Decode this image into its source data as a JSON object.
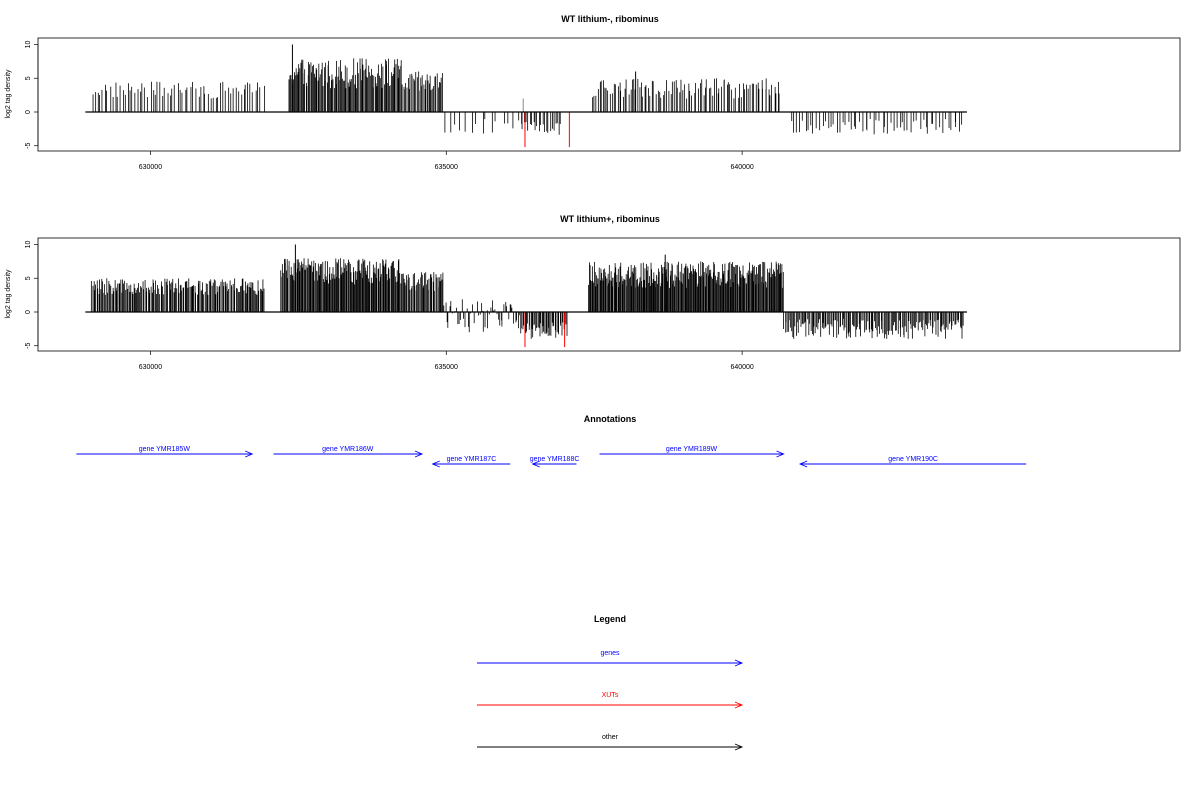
{
  "chart_data": [
    {
      "type": "bar",
      "title": "WT lithium-, ribominus",
      "ylabel": "log2 tag density",
      "xlim": [
        628100,
        647400
      ],
      "ylim": [
        -5.5,
        10.5
      ],
      "x_ticks": [
        630000,
        635000,
        640000
      ],
      "x_tick_labels": [
        "630000",
        "635000",
        "640000"
      ],
      "y_ticks": [
        -5,
        0,
        5,
        10
      ],
      "y_tick_labels": [
        "-5",
        "0",
        "5",
        "10"
      ],
      "baseline": {
        "from": 628900,
        "to": 643800
      },
      "segments": [
        {
          "from": 629000,
          "to": 631930,
          "min": 2,
          "max": 4.5,
          "density": 0.4
        },
        {
          "from": 632330,
          "to": 634250,
          "min": 3.5,
          "max": 8,
          "density": 1.1
        },
        {
          "from": 634250,
          "to": 634950,
          "min": 2.5,
          "max": 6,
          "density": 0.9
        },
        {
          "from": 634950,
          "to": 636250,
          "min": -3.5,
          "max": -1,
          "density": 0.2
        },
        {
          "from": 636250,
          "to": 636950,
          "min": -3.5,
          "max": -1.5,
          "density": 0.55
        },
        {
          "from": 637450,
          "to": 640650,
          "min": 2,
          "max": 5,
          "density": 0.55
        },
        {
          "from": 640800,
          "to": 643750,
          "min": -3.5,
          "max": -1,
          "density": 0.35
        }
      ],
      "peaks": [
        {
          "x": 632400,
          "y": 10,
          "color": "#000000"
        },
        {
          "x": 638200,
          "y": 6,
          "color": "#000000"
        },
        {
          "x": 636300,
          "y": 2,
          "color": "#888888"
        }
      ],
      "highlights": [
        {
          "x": 636330,
          "y": -5.2,
          "color": "#ff0000"
        },
        {
          "x": 637080,
          "y": -5.2,
          "color": "#ff0000"
        }
      ]
    },
    {
      "type": "bar",
      "title": "WT lithium+, ribominus",
      "ylabel": "log2 tag density",
      "xlim": [
        628100,
        647400
      ],
      "ylim": [
        -5.5,
        10.5
      ],
      "x_ticks": [
        630000,
        635000,
        640000
      ],
      "x_tick_labels": [
        "630000",
        "635000",
        "640000"
      ],
      "y_ticks": [
        -5,
        0,
        5,
        10
      ],
      "y_tick_labels": [
        "-5",
        "0",
        "5",
        "10"
      ],
      "baseline": {
        "from": 628900,
        "to": 643800
      },
      "segments": [
        {
          "from": 629000,
          "to": 631930,
          "min": 2.5,
          "max": 5,
          "density": 1.0
        },
        {
          "from": 632200,
          "to": 634250,
          "min": 4,
          "max": 8,
          "density": 1.3
        },
        {
          "from": 634250,
          "to": 634950,
          "min": 3,
          "max": 6,
          "density": 1.1
        },
        {
          "from": 634950,
          "to": 636250,
          "min": -3.5,
          "max": 2,
          "density": 0.7
        },
        {
          "from": 636250,
          "to": 637050,
          "min": -4,
          "max": -1.5,
          "density": 1.0
        },
        {
          "from": 637400,
          "to": 640700,
          "min": 3.5,
          "max": 7.5,
          "density": 1.4
        },
        {
          "from": 640700,
          "to": 643750,
          "min": -4,
          "max": -1,
          "density": 0.9
        }
      ],
      "peaks": [
        {
          "x": 632450,
          "y": 10,
          "color": "#000000"
        },
        {
          "x": 638700,
          "y": 8.5,
          "color": "#000000"
        }
      ],
      "highlights": [
        {
          "x": 636330,
          "y": -5.2,
          "color": "#ff0000"
        },
        {
          "x": 637000,
          "y": -5.2,
          "color": "#ff0000"
        }
      ]
    }
  ],
  "annotations": {
    "title": "Annotations",
    "genes": [
      {
        "label": "gene YMR185W",
        "start": 628750,
        "end": 631720,
        "strand": "+",
        "row": 0
      },
      {
        "label": "gene YMR186W",
        "start": 632080,
        "end": 634590,
        "strand": "+",
        "row": 0
      },
      {
        "label": "gene YMR187C",
        "start": 634770,
        "end": 636080,
        "strand": "-",
        "row": 1
      },
      {
        "label": "gene YMR188C",
        "start": 636460,
        "end": 637200,
        "strand": "-",
        "row": 1
      },
      {
        "label": "gene YMR189W",
        "start": 637590,
        "end": 640700,
        "strand": "+",
        "row": 0
      },
      {
        "label": "gene YMR190C",
        "start": 640980,
        "end": 644800,
        "strand": "-",
        "row": 1
      }
    ],
    "color": "#0000ff"
  },
  "legend": {
    "title": "Legend",
    "items": [
      {
        "label": "genes",
        "color": "#0000ff"
      },
      {
        "label": "XUTs",
        "color": "#ff0000"
      },
      {
        "label": "other",
        "color": "#000000"
      }
    ]
  }
}
